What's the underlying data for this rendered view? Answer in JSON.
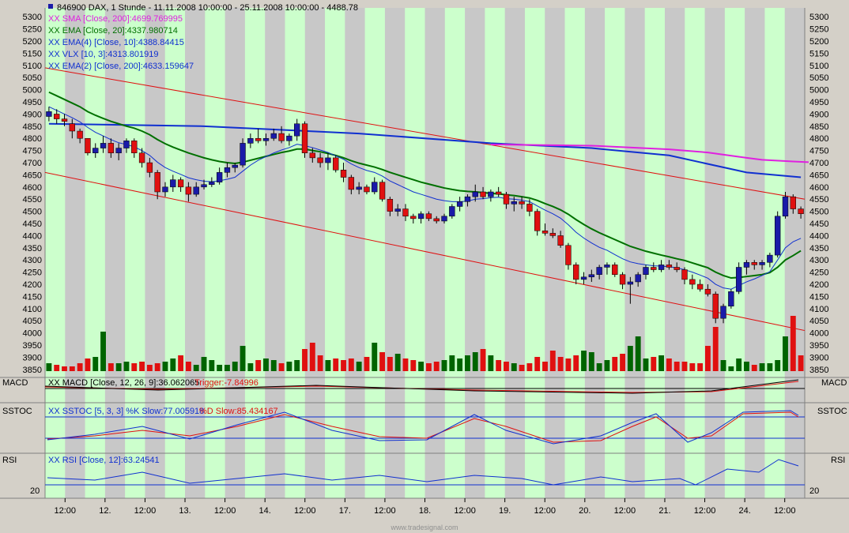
{
  "header": {
    "symbol": "846900",
    "text": "846900  DAX, 1 Stunde - 11.11.2008 10:00:00 - 25.11.2008 10:00:00 - 4488.78"
  },
  "legend": [
    {
      "text": "XX SMA [Close, 200]:4699.769995",
      "color": "#e020e0"
    },
    {
      "text": "XX EMA [Close, 20]:4337.980714",
      "color": "#007000"
    },
    {
      "text": "XX EMA(4) [Close, 10]:4388.84415",
      "color": "#1030d0"
    },
    {
      "text": "XX VLX [10, 3]:4313.801919",
      "color": "#1030d0"
    },
    {
      "text": "XX EMA(2) [Close, 200]:4633.159647",
      "color": "#1030d0"
    }
  ],
  "panels": {
    "macd": {
      "name": "MACD",
      "legend": "XX MACD [Close, 12, 26, 9]:36.062065",
      "trigger": "Trigger:-7.84996"
    },
    "sstoc": {
      "name": "SSTOC",
      "legend": "XX SSTOC [5, 3, 3] %K Slow:77.005918",
      "dslow": "%D Slow:85.434167"
    },
    "rsi": {
      "name": "RSI",
      "legend": "XX RSI [Close, 12]:63.24541",
      "level": "20"
    }
  },
  "x_labels": [
    "12:00",
    "12.",
    "12:00",
    "13.",
    "12:00",
    "14.",
    "12:00",
    "17.",
    "12:00",
    "18.",
    "12:00",
    "19.",
    "12:00",
    "20.",
    "12:00",
    "21.",
    "12:00",
    "24.",
    "12:00"
  ],
  "watermark": "www.tradesignal.com",
  "colors": {
    "up": "#1a1aa8",
    "down": "#e01010",
    "vol_up": "#006400",
    "vol_down": "#e01010",
    "band_a": "#ccffcc",
    "band_b": "#c8c8c8",
    "sma200": "#e020e0",
    "ema20": "#007000",
    "ema10": "#1030d0",
    "channel": "#e01010"
  },
  "chart_data": {
    "type": "candlestick",
    "title": "846900  DAX, 1 Stunde - 11.11.2008 10:00:00 - 25.11.2008 10:00:00 - 4488.78",
    "y_ticks": [
      5300,
      5250,
      5200,
      5150,
      5100,
      5050,
      5000,
      4950,
      4900,
      4850,
      4800,
      4750,
      4700,
      4650,
      4600,
      4550,
      4500,
      4450,
      4400,
      4350,
      4300,
      4250,
      4200,
      4150,
      4100,
      4050,
      4000,
      3950,
      3900,
      3850
    ],
    "ylim": [
      3830,
      5330
    ],
    "ohlc": [
      [
        4890,
        4930,
        4870,
        4910
      ],
      [
        4900,
        4920,
        4860,
        4880
      ],
      [
        4880,
        4900,
        4850,
        4870
      ],
      [
        4860,
        4880,
        4800,
        4830
      ],
      [
        4830,
        4840,
        4780,
        4800
      ],
      [
        4800,
        4800,
        4730,
        4740
      ],
      [
        4740,
        4780,
        4720,
        4760
      ],
      [
        4760,
        4810,
        4740,
        4780
      ],
      [
        4780,
        4800,
        4720,
        4740
      ],
      [
        4740,
        4780,
        4710,
        4760
      ],
      [
        4760,
        4800,
        4740,
        4790
      ],
      [
        4790,
        4800,
        4720,
        4740
      ],
      [
        4740,
        4760,
        4680,
        4700
      ],
      [
        4700,
        4720,
        4640,
        4660
      ],
      [
        4660,
        4670,
        4550,
        4580
      ],
      [
        4580,
        4620,
        4560,
        4600
      ],
      [
        4600,
        4650,
        4580,
        4630
      ],
      [
        4630,
        4640,
        4580,
        4600
      ],
      [
        4600,
        4620,
        4540,
        4570
      ],
      [
        4570,
        4620,
        4560,
        4600
      ],
      [
        4600,
        4630,
        4590,
        4610
      ],
      [
        4610,
        4640,
        4600,
        4620
      ],
      [
        4620,
        4680,
        4610,
        4660
      ],
      [
        4660,
        4700,
        4640,
        4680
      ],
      [
        4680,
        4700,
        4660,
        4690
      ],
      [
        4690,
        4800,
        4680,
        4780
      ],
      [
        4780,
        4820,
        4760,
        4800
      ],
      [
        4800,
        4840,
        4780,
        4790
      ],
      [
        4790,
        4820,
        4770,
        4800
      ],
      [
        4800,
        4840,
        4790,
        4820
      ],
      [
        4820,
        4850,
        4780,
        4790
      ],
      [
        4790,
        4820,
        4770,
        4810
      ],
      [
        4810,
        4880,
        4790,
        4860
      ],
      [
        4860,
        4870,
        4720,
        4740
      ],
      [
        4740,
        4760,
        4700,
        4720
      ],
      [
        4720,
        4740,
        4680,
        4700
      ],
      [
        4700,
        4740,
        4670,
        4720
      ],
      [
        4720,
        4730,
        4660,
        4670
      ],
      [
        4670,
        4700,
        4620,
        4640
      ],
      [
        4640,
        4650,
        4570,
        4590
      ],
      [
        4590,
        4620,
        4570,
        4600
      ],
      [
        4600,
        4610,
        4570,
        4580
      ],
      [
        4580,
        4640,
        4570,
        4620
      ],
      [
        4620,
        4630,
        4540,
        4550
      ],
      [
        4550,
        4560,
        4480,
        4500
      ],
      [
        4500,
        4530,
        4480,
        4510
      ],
      [
        4510,
        4530,
        4460,
        4480
      ],
      [
        4480,
        4490,
        4450,
        4470
      ],
      [
        4470,
        4500,
        4450,
        4490
      ],
      [
        4490,
        4500,
        4460,
        4470
      ],
      [
        4470,
        4480,
        4450,
        4460
      ],
      [
        4460,
        4490,
        4450,
        4480
      ],
      [
        4480,
        4530,
        4470,
        4520
      ],
      [
        4520,
        4560,
        4500,
        4540
      ],
      [
        4540,
        4570,
        4520,
        4560
      ],
      [
        4560,
        4610,
        4540,
        4580
      ],
      [
        4580,
        4600,
        4550,
        4560
      ],
      [
        4560,
        4590,
        4540,
        4580
      ],
      [
        4580,
        4600,
        4560,
        4570
      ],
      [
        4570,
        4580,
        4510,
        4530
      ],
      [
        4530,
        4560,
        4500,
        4540
      ],
      [
        4540,
        4560,
        4510,
        4530
      ],
      [
        4530,
        4550,
        4480,
        4500
      ],
      [
        4500,
        4510,
        4400,
        4420
      ],
      [
        4420,
        4450,
        4400,
        4410
      ],
      [
        4410,
        4430,
        4390,
        4400
      ],
      [
        4400,
        4420,
        4350,
        4360
      ],
      [
        4360,
        4370,
        4260,
        4280
      ],
      [
        4280,
        4290,
        4200,
        4220
      ],
      [
        4220,
        4250,
        4200,
        4230
      ],
      [
        4230,
        4260,
        4210,
        4240
      ],
      [
        4240,
        4280,
        4220,
        4270
      ],
      [
        4270,
        4290,
        4240,
        4280
      ],
      [
        4280,
        4290,
        4230,
        4240
      ],
      [
        4240,
        4250,
        4180,
        4200
      ],
      [
        4200,
        4230,
        4120,
        4210
      ],
      [
        4210,
        4250,
        4190,
        4240
      ],
      [
        4240,
        4280,
        4220,
        4270
      ],
      [
        4270,
        4290,
        4250,
        4260
      ],
      [
        4260,
        4300,
        4250,
        4280
      ],
      [
        4280,
        4300,
        4260,
        4270
      ],
      [
        4270,
        4290,
        4250,
        4260
      ],
      [
        4260,
        4270,
        4200,
        4220
      ],
      [
        4220,
        4240,
        4180,
        4200
      ],
      [
        4200,
        4220,
        4170,
        4180
      ],
      [
        4180,
        4200,
        4150,
        4160
      ],
      [
        4160,
        4170,
        4040,
        4060
      ],
      [
        4060,
        4120,
        4040,
        4110
      ],
      [
        4110,
        4180,
        4100,
        4170
      ],
      [
        4170,
        4290,
        4160,
        4270
      ],
      [
        4270,
        4300,
        4240,
        4290
      ],
      [
        4290,
        4300,
        4260,
        4280
      ],
      [
        4280,
        4300,
        4260,
        4290
      ],
      [
        4290,
        4330,
        4270,
        4320
      ],
      [
        4320,
        4500,
        4310,
        4480
      ],
      [
        4480,
        4580,
        4470,
        4560
      ],
      [
        4560,
        4570,
        4490,
        4510
      ],
      [
        4510,
        4520,
        4470,
        4490
      ]
    ],
    "ema20": [
      4990,
      4975,
      4960,
      4945,
      4930,
      4910,
      4895,
      4882,
      4870,
      4860,
      4850,
      4842,
      4830,
      4815,
      4795,
      4778,
      4764,
      4752,
      4740,
      4730,
      4720,
      4712,
      4705,
      4700,
      4697,
      4702,
      4710,
      4718,
      4726,
      4734,
      4742,
      4748,
      4756,
      4756,
      4750,
      4745,
      4738,
      4730,
      4720,
      4708,
      4698,
      4690,
      4682,
      4672,
      4660,
      4650,
      4640,
      4630,
      4620,
      4612,
      4604,
      4596,
      4590,
      4585,
      4582,
      4580,
      4577,
      4574,
      4572,
      4568,
      4565,
      4560,
      4555,
      4545,
      4532,
      4520,
      4506,
      4488,
      4466,
      4446,
      4428,
      4412,
      4398,
      4384,
      4370,
      4356,
      4346,
      4336,
      4328,
      4320,
      4313,
      4305,
      4298,
      4288,
      4278,
      4268,
      4250,
      4236,
      4226,
      4228,
      4232,
      4236,
      4240,
      4248,
      4270,
      4300,
      4318,
      4338
    ],
    "ema10": [
      4930,
      4915,
      4900,
      4885,
      4868,
      4845,
      4825,
      4810,
      4795,
      4782,
      4775,
      4765,
      4750,
      4730,
      4702,
      4680,
      4665,
      4652,
      4638,
      4630,
      4624,
      4622,
      4626,
      4632,
      4640,
      4665,
      4690,
      4710,
      4725,
      4740,
      4752,
      4762,
      4776,
      4770,
      4762,
      4752,
      4742,
      4728,
      4714,
      4695,
      4680,
      4668,
      4660,
      4645,
      4625,
      4610,
      4595,
      4580,
      4570,
      4560,
      4550,
      4544,
      4540,
      4540,
      4542,
      4550,
      4552,
      4556,
      4558,
      4552,
      4550,
      4546,
      4540,
      4522,
      4505,
      4490,
      4472,
      4445,
      4414,
      4390,
      4370,
      4352,
      4340,
      4322,
      4305,
      4292,
      4285,
      4280,
      4276,
      4275,
      4272,
      4268,
      4260,
      4250,
      4238,
      4225,
      4200,
      4185,
      4180,
      4195,
      4210,
      4222,
      4236,
      4252,
      4300,
      4350,
      4375,
      4389
    ],
    "sma200": [
      {
        "x": 57,
        "y": 4775
      },
      {
        "x": 70,
        "y": 4770
      },
      {
        "x": 80,
        "y": 4755
      },
      {
        "x": 85,
        "y": 4742
      },
      {
        "x": 90,
        "y": 4720
      },
      {
        "x": 92,
        "y": 4712
      },
      {
        "x": 96,
        "y": 4705
      },
      {
        "x": 98,
        "y": 4702
      }
    ],
    "ema200": [
      {
        "x": 0,
        "y": 4860
      },
      {
        "x": 20,
        "y": 4850
      },
      {
        "x": 40,
        "y": 4820
      },
      {
        "x": 57,
        "y": 4780
      },
      {
        "x": 70,
        "y": 4760
      },
      {
        "x": 80,
        "y": 4730
      },
      {
        "x": 90,
        "y": 4660
      },
      {
        "x": 97,
        "y": 4640
      }
    ],
    "channel_upper": [
      {
        "x": 0,
        "y": 5090
      },
      {
        "x": 97,
        "y": 4550
      }
    ],
    "channel_lower": [
      {
        "x": 0,
        "y": 4660
      },
      {
        "x": 97,
        "y": 4010
      }
    ],
    "volume": [
      5,
      4,
      3,
      3,
      5,
      8,
      9,
      25,
      5,
      5,
      6,
      5,
      6,
      4,
      5,
      6,
      8,
      10,
      6,
      4,
      9,
      7,
      4,
      4,
      6,
      16,
      5,
      7,
      8,
      7,
      5,
      6,
      7,
      14,
      18,
      10,
      7,
      8,
      7,
      8,
      6,
      9,
      18,
      12,
      9,
      11,
      8,
      7,
      6,
      5,
      6,
      7,
      10,
      8,
      10,
      12,
      14,
      10,
      7,
      6,
      5,
      4,
      5,
      9,
      6,
      13,
      9,
      8,
      10,
      13,
      12,
      5,
      7,
      9,
      11,
      16,
      22,
      8,
      9,
      10,
      8,
      6,
      6,
      5,
      5,
      16,
      28,
      7,
      3,
      8,
      6,
      4,
      5,
      5,
      7,
      22,
      35,
      10
    ]
  }
}
